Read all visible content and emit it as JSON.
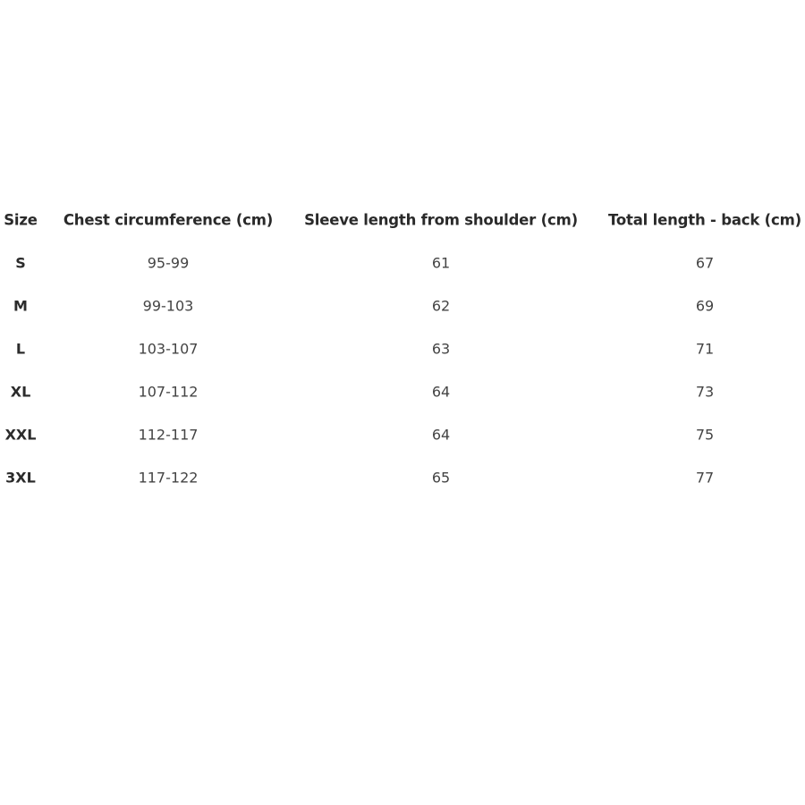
{
  "table": {
    "headers": [
      "Size",
      "Chest circumference (cm)",
      "Sleeve length from shoulder (cm)",
      "Total length - back (cm)"
    ],
    "rows": [
      [
        "S",
        "95-99",
        "61",
        "67"
      ],
      [
        "M",
        "99-103",
        "62",
        "69"
      ],
      [
        "L",
        "103-107",
        "63",
        "71"
      ],
      [
        "XL",
        "107-112",
        "64",
        "73"
      ],
      [
        "XXL",
        "112-117",
        "64",
        "75"
      ],
      [
        "3XL",
        "117-122",
        "65",
        "77"
      ]
    ]
  }
}
